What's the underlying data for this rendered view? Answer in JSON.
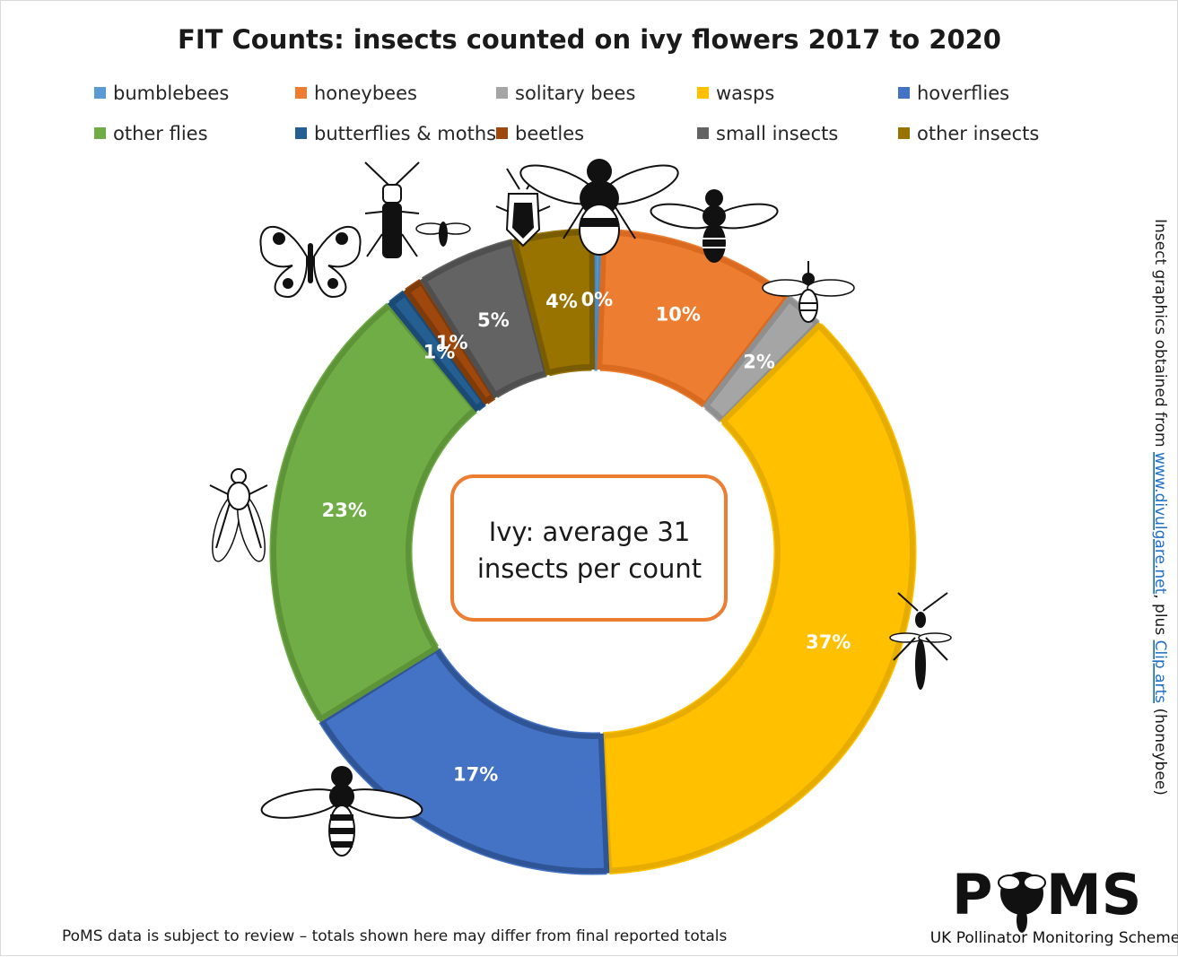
{
  "chart_data": {
    "type": "donut",
    "title": "FIT Counts: insects counted on ivy flowers 2017 to 2020",
    "categories": [
      "bumblebees",
      "honeybees",
      "solitary bees",
      "wasps",
      "hoverflies",
      "other flies",
      "butterflies & moths",
      "beetles",
      "small insects",
      "other insects"
    ],
    "values": [
      0.5,
      10,
      2,
      37,
      17,
      23,
      1,
      1,
      5,
      4
    ],
    "data_labels": [
      "0%",
      "10%",
      "2%",
      "37%",
      "17%",
      "23%",
      "1%",
      "1%",
      "5%",
      "4%"
    ],
    "colors": [
      "#5b9bd5",
      "#ed7d31",
      "#a5a5a5",
      "#ffc000",
      "#4472c4",
      "#70ad47",
      "#255e91",
      "#9e480e",
      "#636363",
      "#997300"
    ],
    "border_colors": [
      "#4a88c0",
      "#d96a20",
      "#8f8f8f",
      "#e6ac00",
      "#2f5597",
      "#5e9438",
      "#1a4a75",
      "#7f3a0a",
      "#4f4f4f",
      "#7a5c00"
    ],
    "legend_position": "top"
  },
  "center_box": {
    "line1": "Ivy: average 31",
    "line2": "insects per count",
    "border_color": "#ed7d31"
  },
  "side_credit": {
    "prefix": "Insect graphics obtained from ",
    "link1": "www.divulgare.net",
    "middle": ", plus ",
    "link2": "Clip arts",
    "suffix": " (honeybee)"
  },
  "footnote": "PoMS data is subject to review – totals shown here may differ from final reported totals",
  "logo": {
    "text_p": "P",
    "text_ms": "MS",
    "subtitle": "UK Pollinator Monitoring Scheme"
  },
  "insect_icons": [
    "butterfly-icon",
    "beetle-icon",
    "small-insect-icon",
    "bug-icon",
    "bumblebee-icon",
    "honeybee-icon",
    "solitary-bee-icon",
    "wasp-icon",
    "fly-icon",
    "hoverfly-icon"
  ]
}
